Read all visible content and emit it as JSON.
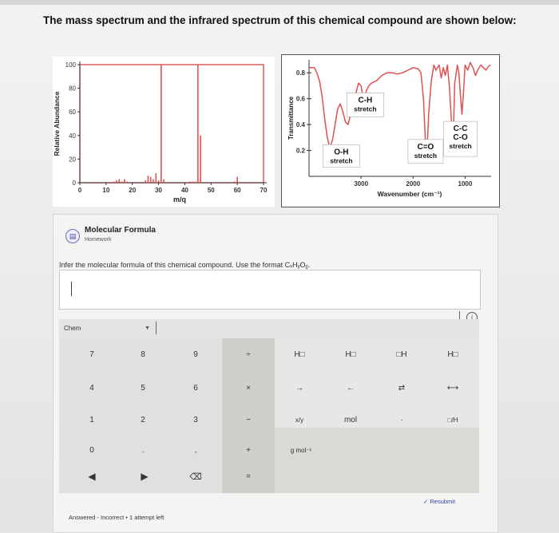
{
  "question": "The mass spectrum and the infrared spectrum of this chemical compound are shown below:",
  "mass_spectrum": {
    "ylabel": "Relative Abundance",
    "xlabel": "m/q",
    "y_ticks": [
      "0",
      "20",
      "40",
      "60",
      "80",
      "100"
    ],
    "x_ticks": [
      "0",
      "10",
      "20",
      "30",
      "40",
      "50",
      "60",
      "70"
    ],
    "frame_color": "#e05050",
    "peak_color": "#e05050",
    "peaks": [
      {
        "mz": 13,
        "rel": 1
      },
      {
        "mz": 14,
        "rel": 2
      },
      {
        "mz": 15,
        "rel": 3
      },
      {
        "mz": 16,
        "rel": 1
      },
      {
        "mz": 17,
        "rel": 3
      },
      {
        "mz": 18,
        "rel": 1
      },
      {
        "mz": 25,
        "rel": 2
      },
      {
        "mz": 26,
        "rel": 6
      },
      {
        "mz": 27,
        "rel": 5
      },
      {
        "mz": 28,
        "rel": 3
      },
      {
        "mz": 29,
        "rel": 8
      },
      {
        "mz": 30,
        "rel": 2
      },
      {
        "mz": 31,
        "rel": 100
      },
      {
        "mz": 32,
        "rel": 3
      },
      {
        "mz": 42,
        "rel": 1
      },
      {
        "mz": 43,
        "rel": 1
      },
      {
        "mz": 44,
        "rel": 1
      },
      {
        "mz": 45,
        "rel": 100
      },
      {
        "mz": 46,
        "rel": 40
      },
      {
        "mz": 59,
        "rel": 1
      },
      {
        "mz": 60,
        "rel": 5
      }
    ]
  },
  "ir_spectrum": {
    "ylabel": "Transmittance",
    "xlabel": "Wavenumber (cm⁻¹)",
    "y_ticks": [
      "0.2",
      "0.4",
      "0.6",
      "0.8"
    ],
    "x_ticks": [
      "3000",
      "2000",
      "1000"
    ],
    "line_color": "#e05050",
    "annotations": [
      {
        "line1": "O-H",
        "line2": "stretch"
      },
      {
        "line1": "C-H",
        "line2": "stretch"
      },
      {
        "line1": "C=O",
        "line2": "stretch"
      },
      {
        "line1": "C-C",
        "line2": "C-O",
        "line3": "stretch"
      }
    ]
  },
  "task": {
    "title": "Molecular Formula",
    "subtitle": "Homework",
    "instruction": "Infer the molecular formula of this chemical compound. Use the format CₓHᵧOᵨ.",
    "answer_value": ""
  },
  "keypad": {
    "mode": "Chem",
    "numbers": [
      "7",
      "8",
      "9",
      "4",
      "5",
      "6",
      "1",
      "2",
      "3",
      "0"
    ],
    "operators": [
      "÷",
      "×",
      "−",
      "+",
      "="
    ],
    "period": ".",
    "comma": ",",
    "chem_keys": [
      "H□",
      "H□",
      "□H",
      "H□",
      "→",
      "←",
      "⇄",
      "⟷",
      "x/y",
      "mol",
      "·",
      "□/H",
      "g mol⁻¹"
    ]
  },
  "resubmit_label": "Resubmit",
  "status": "Answered - Incorrect  •  1 attempt left",
  "accent_color": "#3348a0"
}
